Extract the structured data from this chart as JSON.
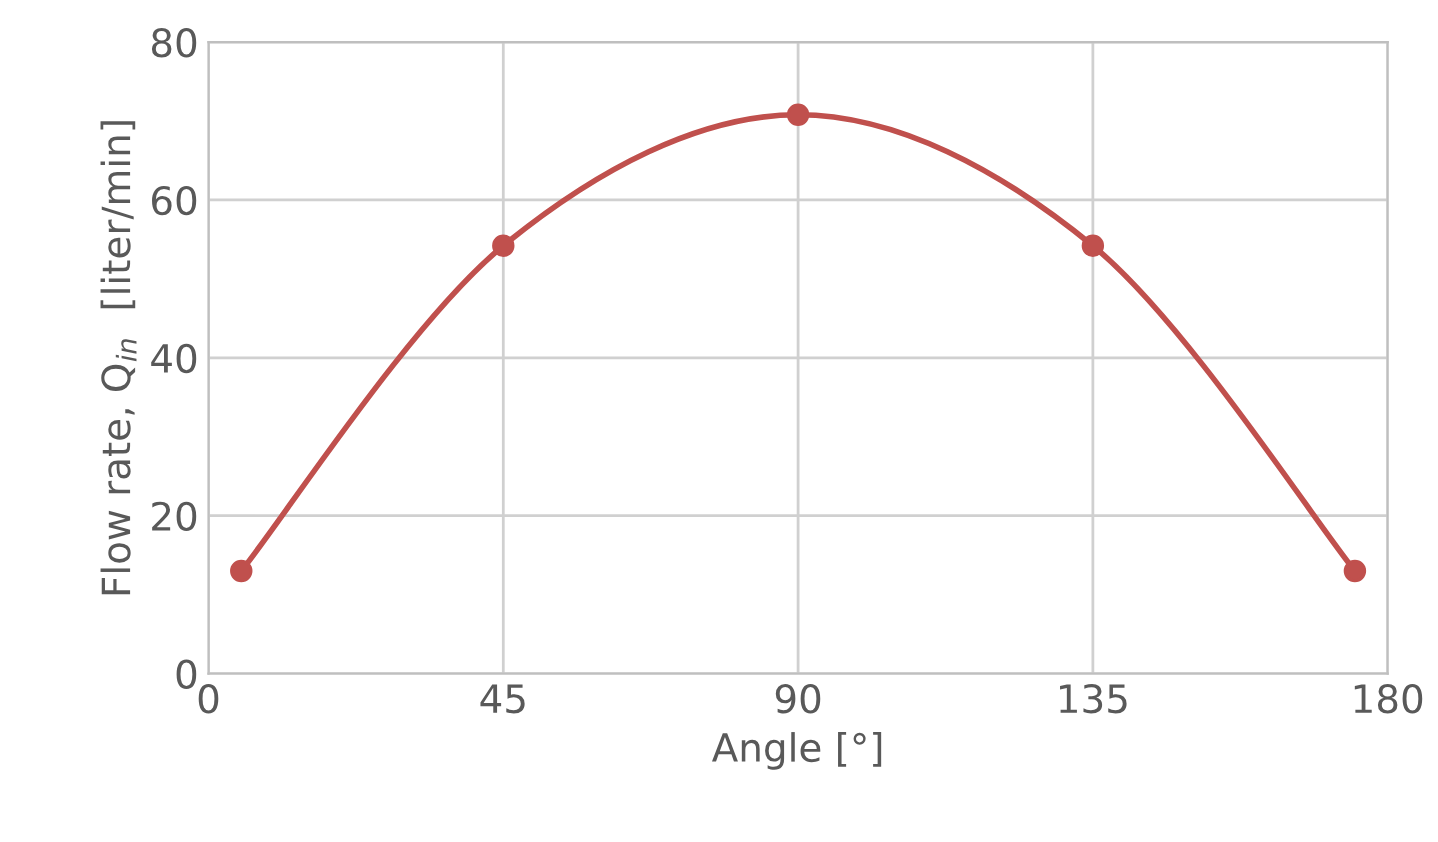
{
  "chart_data": {
    "type": "line",
    "xlabel": "Angle [°]",
    "ylabel": "Flow rate, Q$_{in}$  [liter/min]",
    "x": [
      5,
      45,
      90,
      135,
      175
    ],
    "series": [
      {
        "color": "#c0504d",
        "values": [
          13,
          54.2,
          70.8,
          54.2,
          13
        ]
      }
    ],
    "xlim": [
      0,
      180
    ],
    "xticks": [
      0,
      45,
      90,
      135,
      180
    ],
    "ylim": [
      0,
      80
    ],
    "yticks": [
      0,
      20,
      40,
      60,
      80
    ],
    "grid": true,
    "marker": "circle",
    "line_style": "solid"
  }
}
